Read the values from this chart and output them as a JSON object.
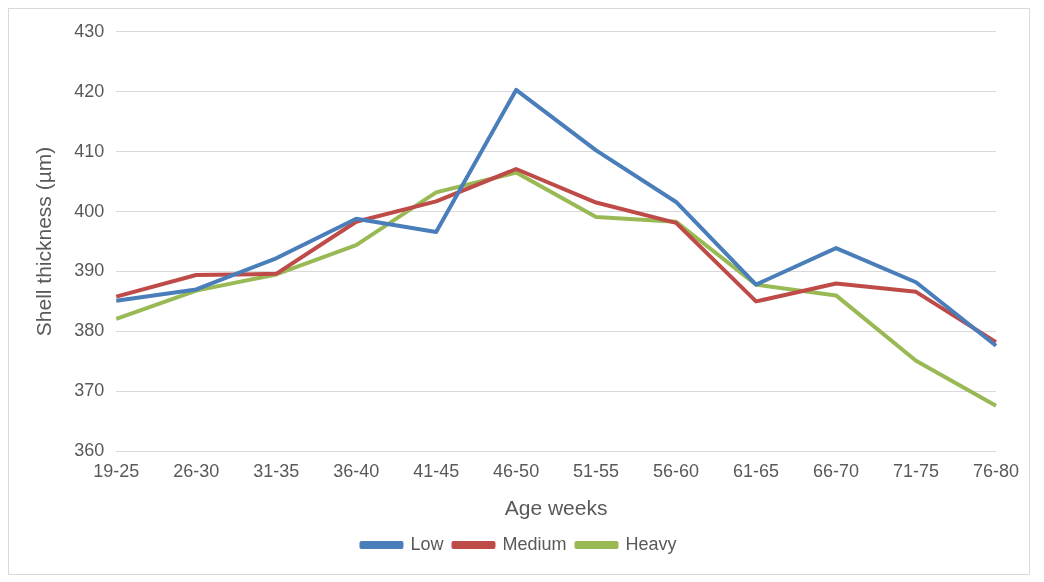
{
  "chart_data": {
    "type": "line",
    "xlabel": "Age weeks",
    "ylabel": "Shell thickness (µm)",
    "categories": [
      "19-25",
      "26-30",
      "31-35",
      "36-40",
      "41-45",
      "46-50",
      "51-55",
      "56-60",
      "61-65",
      "66-70",
      "71-75",
      "76-80"
    ],
    "series": [
      {
        "name": "Low",
        "color": "#4a7ebb",
        "values": [
          385.1,
          387,
          392.2,
          398.8,
          396.6,
          420.3,
          410.2,
          401.6,
          387.8,
          393.9,
          388.2,
          377.6
        ]
      },
      {
        "name": "Medium",
        "color": "#be4b48",
        "values": [
          385.8,
          389.4,
          389.6,
          398.3,
          401.7,
          407.1,
          401.5,
          398.1,
          385,
          388,
          386.6,
          378.2
        ]
      },
      {
        "name": "Heavy",
        "color": "#98b954",
        "values": [
          382.1,
          386.8,
          389.5,
          394.4,
          403.2,
          406.5,
          399.1,
          398.3,
          387.8,
          386,
          375.1,
          367.6
        ]
      }
    ],
    "ylim": [
      360,
      430
    ],
    "yticks": [
      360,
      370,
      380,
      390,
      400,
      410,
      420,
      430
    ],
    "grid": "y",
    "legend": "bottom",
    "marker": "none",
    "line_style": "solid"
  }
}
